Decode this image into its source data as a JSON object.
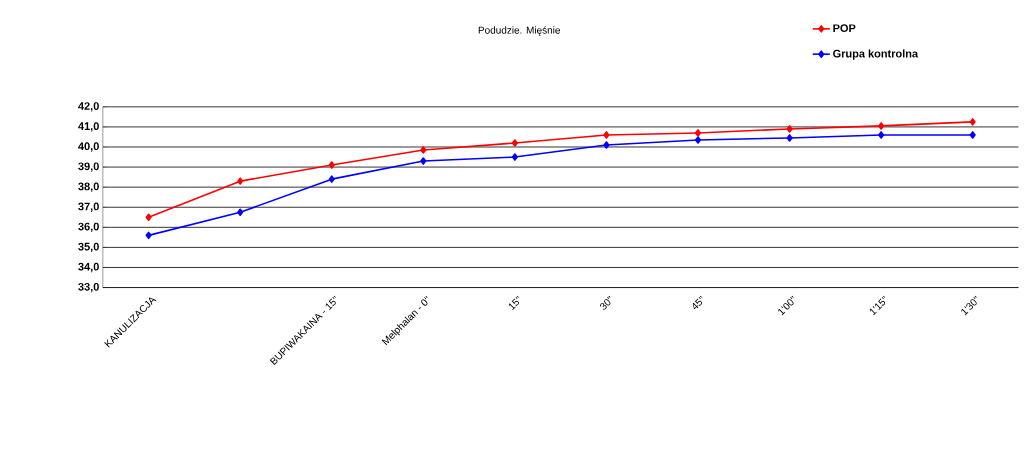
{
  "chart_data": {
    "type": "line",
    "title": "Podudzie. Mięśnie",
    "categories": [
      "KANULIZACJA",
      null,
      "BUPIWAKAINA - 15\"",
      "Melphalan - 0\"",
      "15\"",
      "30\"",
      "45\"",
      "1'00\"",
      "1'15\"",
      "1'30\""
    ],
    "series": [
      {
        "name": "POP",
        "color": "#ff0000",
        "values": [
          36.5,
          38.3,
          39.1,
          39.85,
          40.2,
          40.6,
          40.7,
          40.9,
          41.05,
          41.25
        ]
      },
      {
        "name": "Grupa kontrolna",
        "color": "#0000ff",
        "values": [
          35.6,
          36.75,
          38.4,
          39.3,
          39.5,
          40.1,
          40.35,
          40.45,
          40.6,
          40.6
        ]
      }
    ],
    "ylim": [
      33,
      42
    ],
    "yticks": [
      {
        "value": 33,
        "label": "33,0"
      },
      {
        "value": 34,
        "label": "34,0"
      },
      {
        "value": 35,
        "label": "35,0"
      },
      {
        "value": 36,
        "label": "36,0"
      },
      {
        "value": 37,
        "label": "37,0"
      },
      {
        "value": 38,
        "label": "38,0"
      },
      {
        "value": 39,
        "label": "39,0"
      },
      {
        "value": 40,
        "label": "40,0"
      },
      {
        "value": 41,
        "label": "41,0"
      },
      {
        "value": 42,
        "label": "42,0"
      }
    ],
    "grid": "y",
    "legend": "top right",
    "marker": "diamond",
    "line_style": "solid"
  }
}
